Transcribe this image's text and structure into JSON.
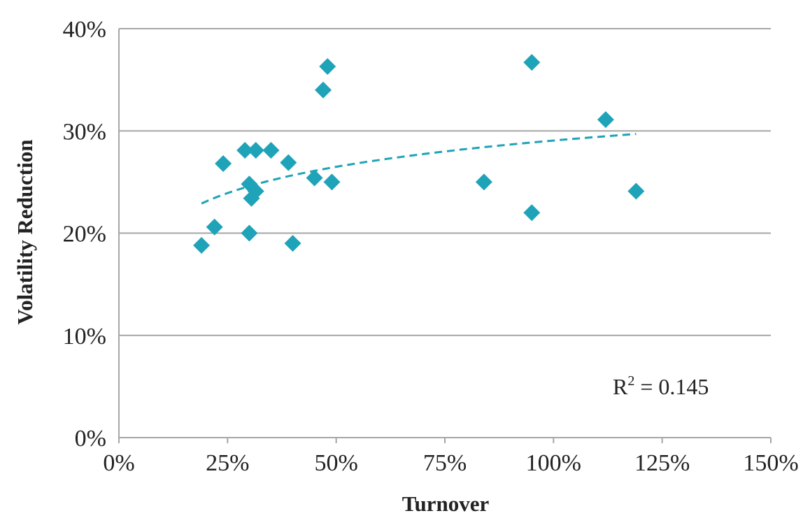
{
  "chart_data": {
    "type": "scatter",
    "xlabel": "Turnover",
    "ylabel": "Volatility Reduction",
    "xlim": [
      0,
      1.5
    ],
    "ylim": [
      0,
      0.4
    ],
    "x_ticks": [
      0,
      0.25,
      0.5,
      0.75,
      1.0,
      1.25,
      1.5
    ],
    "x_tick_labels": [
      "0%",
      "25%",
      "50%",
      "75%",
      "100%",
      "125%",
      "150%"
    ],
    "y_ticks": [
      0,
      0.1,
      0.2,
      0.3,
      0.4
    ],
    "y_tick_labels": [
      "0%",
      "10%",
      "20%",
      "30%",
      "40%"
    ],
    "grid": "horizontal",
    "marker": "diamond",
    "marker_color": "#1fa3b8",
    "trendline": {
      "type": "logarithmic",
      "style": "dashed",
      "color": "#1fa3b8",
      "x_range": [
        0.19,
        1.19
      ],
      "y_range": [
        0.229,
        0.297
      ]
    },
    "annotation": {
      "base": "R",
      "superscript": "2",
      "rest": " = 0.145",
      "position": "bottom-right"
    },
    "points": [
      {
        "x": 0.19,
        "y": 0.188
      },
      {
        "x": 0.22,
        "y": 0.206
      },
      {
        "x": 0.24,
        "y": 0.268
      },
      {
        "x": 0.29,
        "y": 0.281
      },
      {
        "x": 0.3,
        "y": 0.248
      },
      {
        "x": 0.3,
        "y": 0.2
      },
      {
        "x": 0.305,
        "y": 0.234
      },
      {
        "x": 0.315,
        "y": 0.281
      },
      {
        "x": 0.315,
        "y": 0.241
      },
      {
        "x": 0.35,
        "y": 0.281
      },
      {
        "x": 0.39,
        "y": 0.269
      },
      {
        "x": 0.4,
        "y": 0.19
      },
      {
        "x": 0.45,
        "y": 0.254
      },
      {
        "x": 0.47,
        "y": 0.34
      },
      {
        "x": 0.48,
        "y": 0.363
      },
      {
        "x": 0.49,
        "y": 0.25
      },
      {
        "x": 0.84,
        "y": 0.25
      },
      {
        "x": 0.95,
        "y": 0.367
      },
      {
        "x": 0.95,
        "y": 0.22
      },
      {
        "x": 1.12,
        "y": 0.311
      },
      {
        "x": 1.19,
        "y": 0.241
      }
    ]
  }
}
